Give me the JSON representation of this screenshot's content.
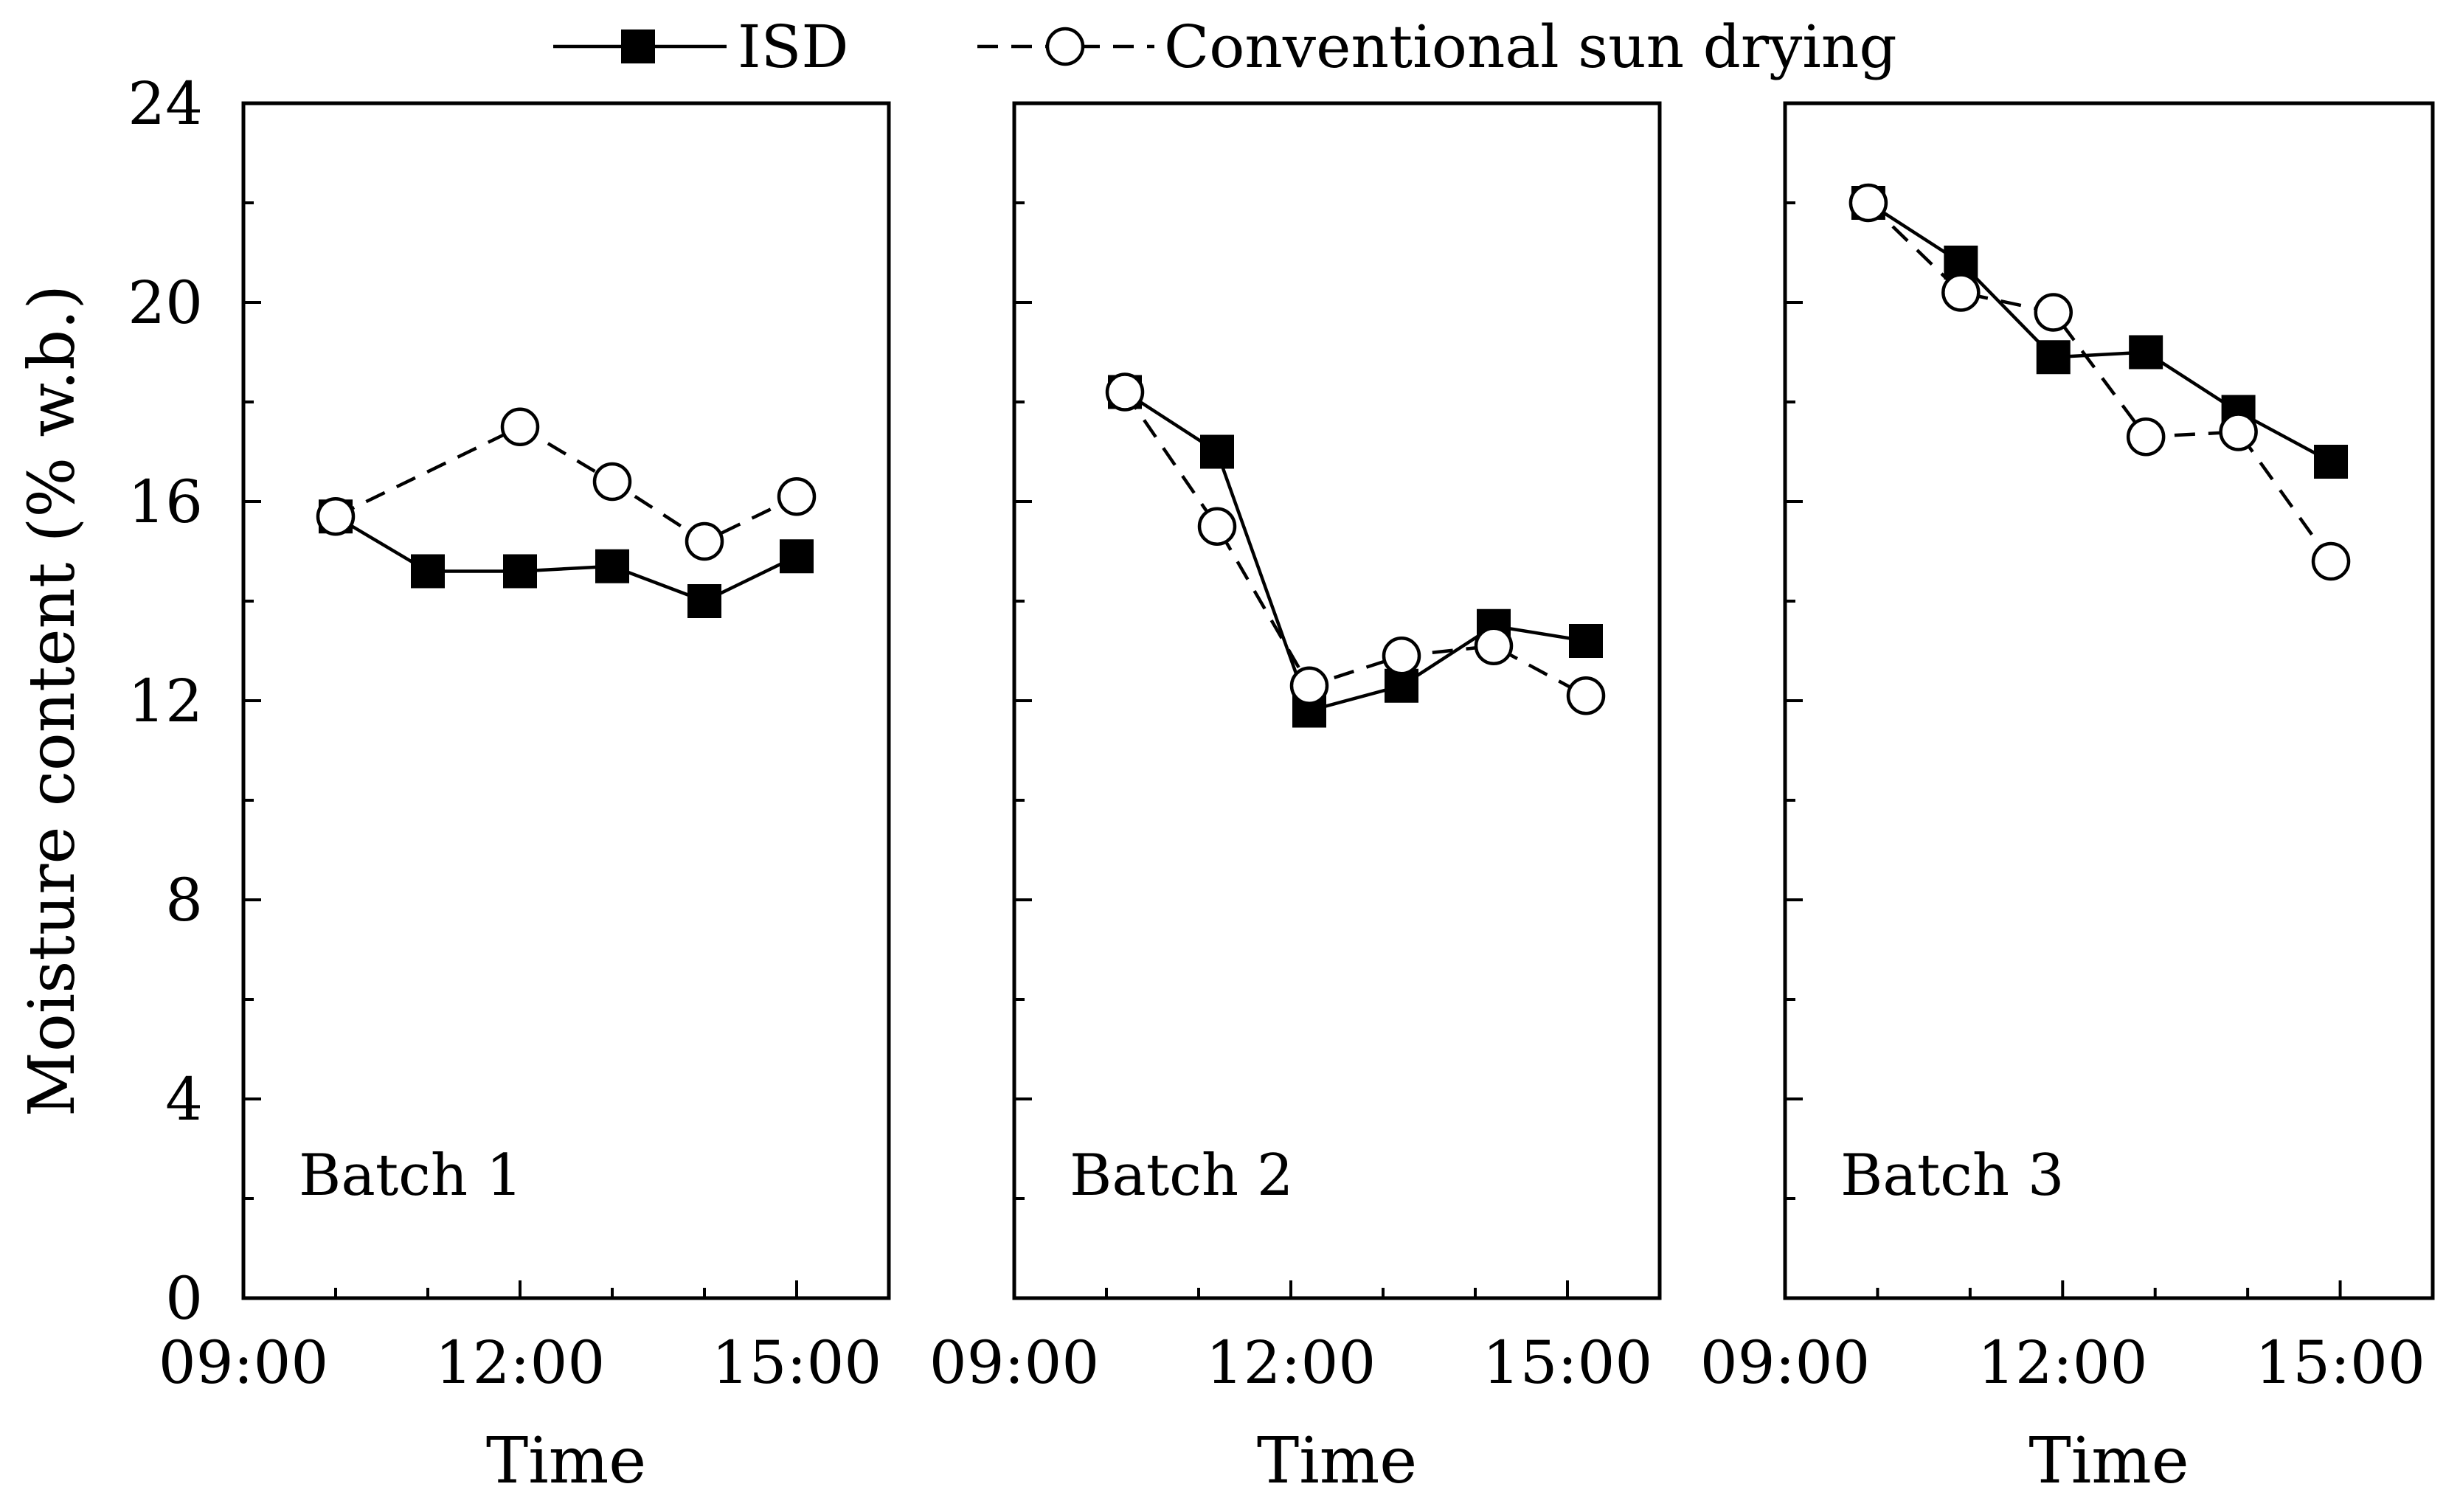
{
  "chart_data": {
    "type": "line",
    "legend": [
      {
        "name": "ISD",
        "style": "solid line, filled square"
      },
      {
        "name": "Conventional sun drying",
        "style": "dashed line, open circle"
      }
    ],
    "ylabel": "Moisture content (% w.b.)",
    "ylim": [
      0,
      24
    ],
    "yticks": [
      "0",
      "4",
      "8",
      "12",
      "16",
      "20",
      "24"
    ],
    "xlabel": "Time",
    "xlim_hours": [
      9,
      16
    ],
    "xticks": [
      "09:00",
      "12:00",
      "15:00"
    ],
    "panels": [
      {
        "label": "Batch 1",
        "series": [
          {
            "name": "ISD",
            "x": [
              10,
              11,
              12,
              13,
              14,
              15
            ],
            "values": [
              15.7,
              14.6,
              14.6,
              14.7,
              14.0,
              14.9
            ]
          },
          {
            "name": "Conventional sun drying",
            "x": [
              10,
              12,
              13,
              14,
              15
            ],
            "values": [
              15.7,
              17.5,
              16.4,
              15.2,
              16.1
            ]
          }
        ]
      },
      {
        "label": "Batch 2",
        "series": [
          {
            "name": "ISD",
            "x": [
              10.2,
              11.2,
              12.2,
              13.2,
              14.2,
              15.2
            ],
            "values": [
              18.2,
              17.0,
              11.8,
              12.3,
              13.5,
              13.2
            ]
          },
          {
            "name": "Conventional sun drying",
            "x": [
              10.2,
              11.2,
              12.2,
              13.2,
              14.2,
              15.2
            ],
            "values": [
              18.2,
              15.5,
              12.3,
              12.9,
              13.1,
              12.1
            ]
          }
        ]
      },
      {
        "label": "Batch 3",
        "series": [
          {
            "name": "ISD",
            "x": [
              9.9,
              10.9,
              11.9,
              12.9,
              13.9,
              14.9
            ],
            "values": [
              22.0,
              20.8,
              18.9,
              19.0,
              17.8,
              16.8
            ]
          },
          {
            "name": "Conventional sun drying",
            "x": [
              9.9,
              10.9,
              11.9,
              12.9,
              13.9,
              14.9
            ],
            "values": [
              22.0,
              20.2,
              19.8,
              17.3,
              17.4,
              14.8
            ]
          }
        ]
      }
    ]
  }
}
